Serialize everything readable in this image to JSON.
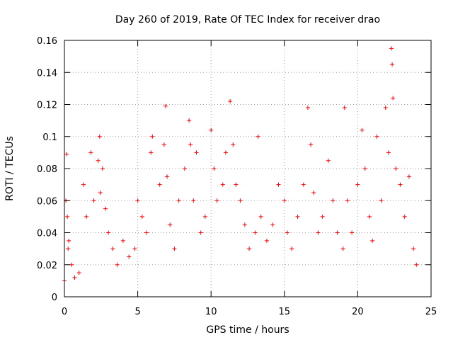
{
  "chart_data": {
    "type": "scatter",
    "title": "Day 260 of 2019, Rate Of TEC Index for receiver drao",
    "xlabel": "GPS time / hours",
    "ylabel": "ROTI / TECUs",
    "xlim": [
      0,
      25
    ],
    "ylim": [
      0,
      0.16
    ],
    "xticks": [
      0,
      5,
      10,
      15,
      20,
      25
    ],
    "xtick_labels": [
      "0",
      "5",
      "10",
      "15",
      "20",
      "25"
    ],
    "yticks": [
      0,
      0.02,
      0.04,
      0.06,
      0.08,
      0.1,
      0.12,
      0.14,
      0.16
    ],
    "ytick_labels": [
      "0",
      "0.02",
      "0.04",
      "0.06",
      "0.08",
      "0.1",
      "0.12",
      "0.14",
      "0.16"
    ],
    "grid": true,
    "marker": "+",
    "color": "#ff0000",
    "series": [
      {
        "name": "ROTI",
        "x": [
          0.0,
          0.1,
          0.15,
          0.2,
          0.25,
          0.3,
          0.5,
          0.7,
          1.0,
          1.3,
          1.5,
          1.8,
          2.0,
          2.3,
          2.4,
          2.45,
          2.6,
          2.8,
          3.0,
          3.3,
          3.6,
          4.0,
          4.4,
          4.8,
          5.0,
          5.3,
          5.6,
          5.9,
          6.0,
          6.5,
          6.8,
          6.9,
          7.0,
          7.2,
          7.5,
          7.8,
          8.2,
          8.5,
          8.6,
          8.8,
          9.0,
          9.3,
          9.6,
          10.0,
          10.2,
          10.4,
          10.8,
          11.0,
          11.3,
          11.5,
          11.7,
          12.0,
          12.3,
          12.6,
          13.0,
          13.2,
          13.4,
          13.8,
          14.2,
          14.6,
          15.0,
          15.2,
          15.5,
          15.9,
          16.3,
          16.6,
          16.8,
          17.0,
          17.3,
          17.6,
          18.0,
          18.3,
          18.6,
          19.0,
          19.1,
          19.3,
          19.6,
          20.0,
          20.3,
          20.5,
          20.8,
          21.0,
          21.3,
          21.6,
          21.9,
          22.1,
          22.3,
          22.35,
          22.4,
          22.6,
          22.9,
          23.2,
          23.5,
          23.8,
          24.0
        ],
        "y": [
          0.01,
          0.06,
          0.089,
          0.05,
          0.03,
          0.035,
          0.02,
          0.012,
          0.015,
          0.07,
          0.05,
          0.09,
          0.06,
          0.085,
          0.1,
          0.065,
          0.08,
          0.055,
          0.04,
          0.03,
          0.02,
          0.035,
          0.025,
          0.03,
          0.06,
          0.05,
          0.04,
          0.09,
          0.1,
          0.07,
          0.095,
          0.119,
          0.075,
          0.045,
          0.03,
          0.06,
          0.08,
          0.11,
          0.095,
          0.06,
          0.09,
          0.04,
          0.05,
          0.104,
          0.08,
          0.06,
          0.07,
          0.09,
          0.122,
          0.095,
          0.07,
          0.06,
          0.045,
          0.03,
          0.04,
          0.1,
          0.05,
          0.035,
          0.045,
          0.07,
          0.06,
          0.04,
          0.03,
          0.05,
          0.07,
          0.118,
          0.095,
          0.065,
          0.04,
          0.05,
          0.085,
          0.06,
          0.04,
          0.03,
          0.118,
          0.06,
          0.04,
          0.07,
          0.104,
          0.08,
          0.05,
          0.035,
          0.1,
          0.06,
          0.118,
          0.09,
          0.155,
          0.145,
          0.124,
          0.08,
          0.07,
          0.05,
          0.075,
          0.03,
          0.02
        ]
      }
    ]
  }
}
